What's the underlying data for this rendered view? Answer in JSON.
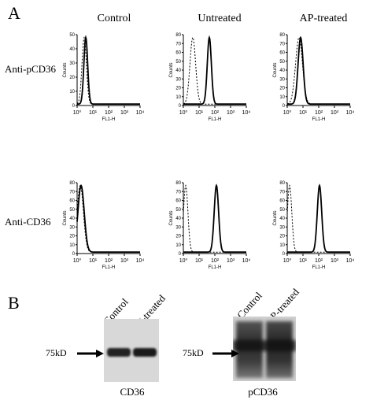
{
  "panels": {
    "a_letter": "A",
    "b_letter": "B"
  },
  "columns": [
    "Control",
    "Untreated",
    "AP-treated"
  ],
  "rows": [
    "Anti-pCD36",
    "Anti-CD36"
  ],
  "axes": {
    "x_label": "FL1-H",
    "y_label": "Counts",
    "x_ticks": [
      "10⁰",
      "10¹",
      "10²",
      "10³",
      "10⁴"
    ]
  },
  "histograms": [
    {
      "row": "Anti-pCD36",
      "col": "Control",
      "y_ticks": [
        "0",
        "10",
        "20",
        "30",
        "40",
        "50"
      ],
      "y_max": 50,
      "solid_peak_log": 0.55,
      "solid_width": 0.12,
      "dashed_peak_log": 0.45,
      "dashed_width": 0.14
    },
    {
      "row": "Anti-pCD36",
      "col": "Untreated",
      "y_ticks": [
        "0",
        "10",
        "20",
        "30",
        "40",
        "50",
        "60",
        "70",
        "80"
      ],
      "y_max": 80,
      "solid_peak_log": 1.65,
      "solid_width": 0.13,
      "dashed_peak_log": 0.6,
      "dashed_width": 0.18
    },
    {
      "row": "Anti-pCD36",
      "col": "AP-treated",
      "y_ticks": [
        "0",
        "10",
        "20",
        "30",
        "40",
        "50",
        "60",
        "70",
        "80"
      ],
      "y_max": 80,
      "solid_peak_log": 0.85,
      "solid_width": 0.16,
      "dashed_peak_log": 0.75,
      "dashed_width": 0.22
    },
    {
      "row": "Anti-CD36",
      "col": "Control",
      "y_ticks": [
        "0",
        "10",
        "20",
        "30",
        "40",
        "50",
        "60",
        "70",
        "80"
      ],
      "y_max": 80,
      "solid_peak_log": 0.25,
      "solid_width": 0.2,
      "dashed_peak_log": 0.2,
      "dashed_width": 0.2
    },
    {
      "row": "Anti-CD36",
      "col": "Untreated",
      "y_ticks": [
        "0",
        "10",
        "20",
        "30",
        "40",
        "50",
        "60",
        "70",
        "80"
      ],
      "y_max": 80,
      "solid_peak_log": 2.1,
      "solid_width": 0.14,
      "dashed_peak_log": 0.15,
      "dashed_width": 0.14
    },
    {
      "row": "Anti-CD36",
      "col": "AP-treated",
      "y_ticks": [
        "0",
        "10",
        "20",
        "30",
        "40",
        "50",
        "60",
        "70",
        "80"
      ],
      "y_max": 80,
      "solid_peak_log": 2.05,
      "solid_width": 0.14,
      "dashed_peak_log": 0.15,
      "dashed_width": 0.14
    }
  ],
  "blots": [
    {
      "caption": "CD36",
      "lanes": [
        "Control",
        "AP-treated"
      ],
      "marker": "75kD"
    },
    {
      "caption": "pCD36",
      "lanes": [
        "Control",
        "AP-treated"
      ],
      "marker": "75kD"
    }
  ]
}
